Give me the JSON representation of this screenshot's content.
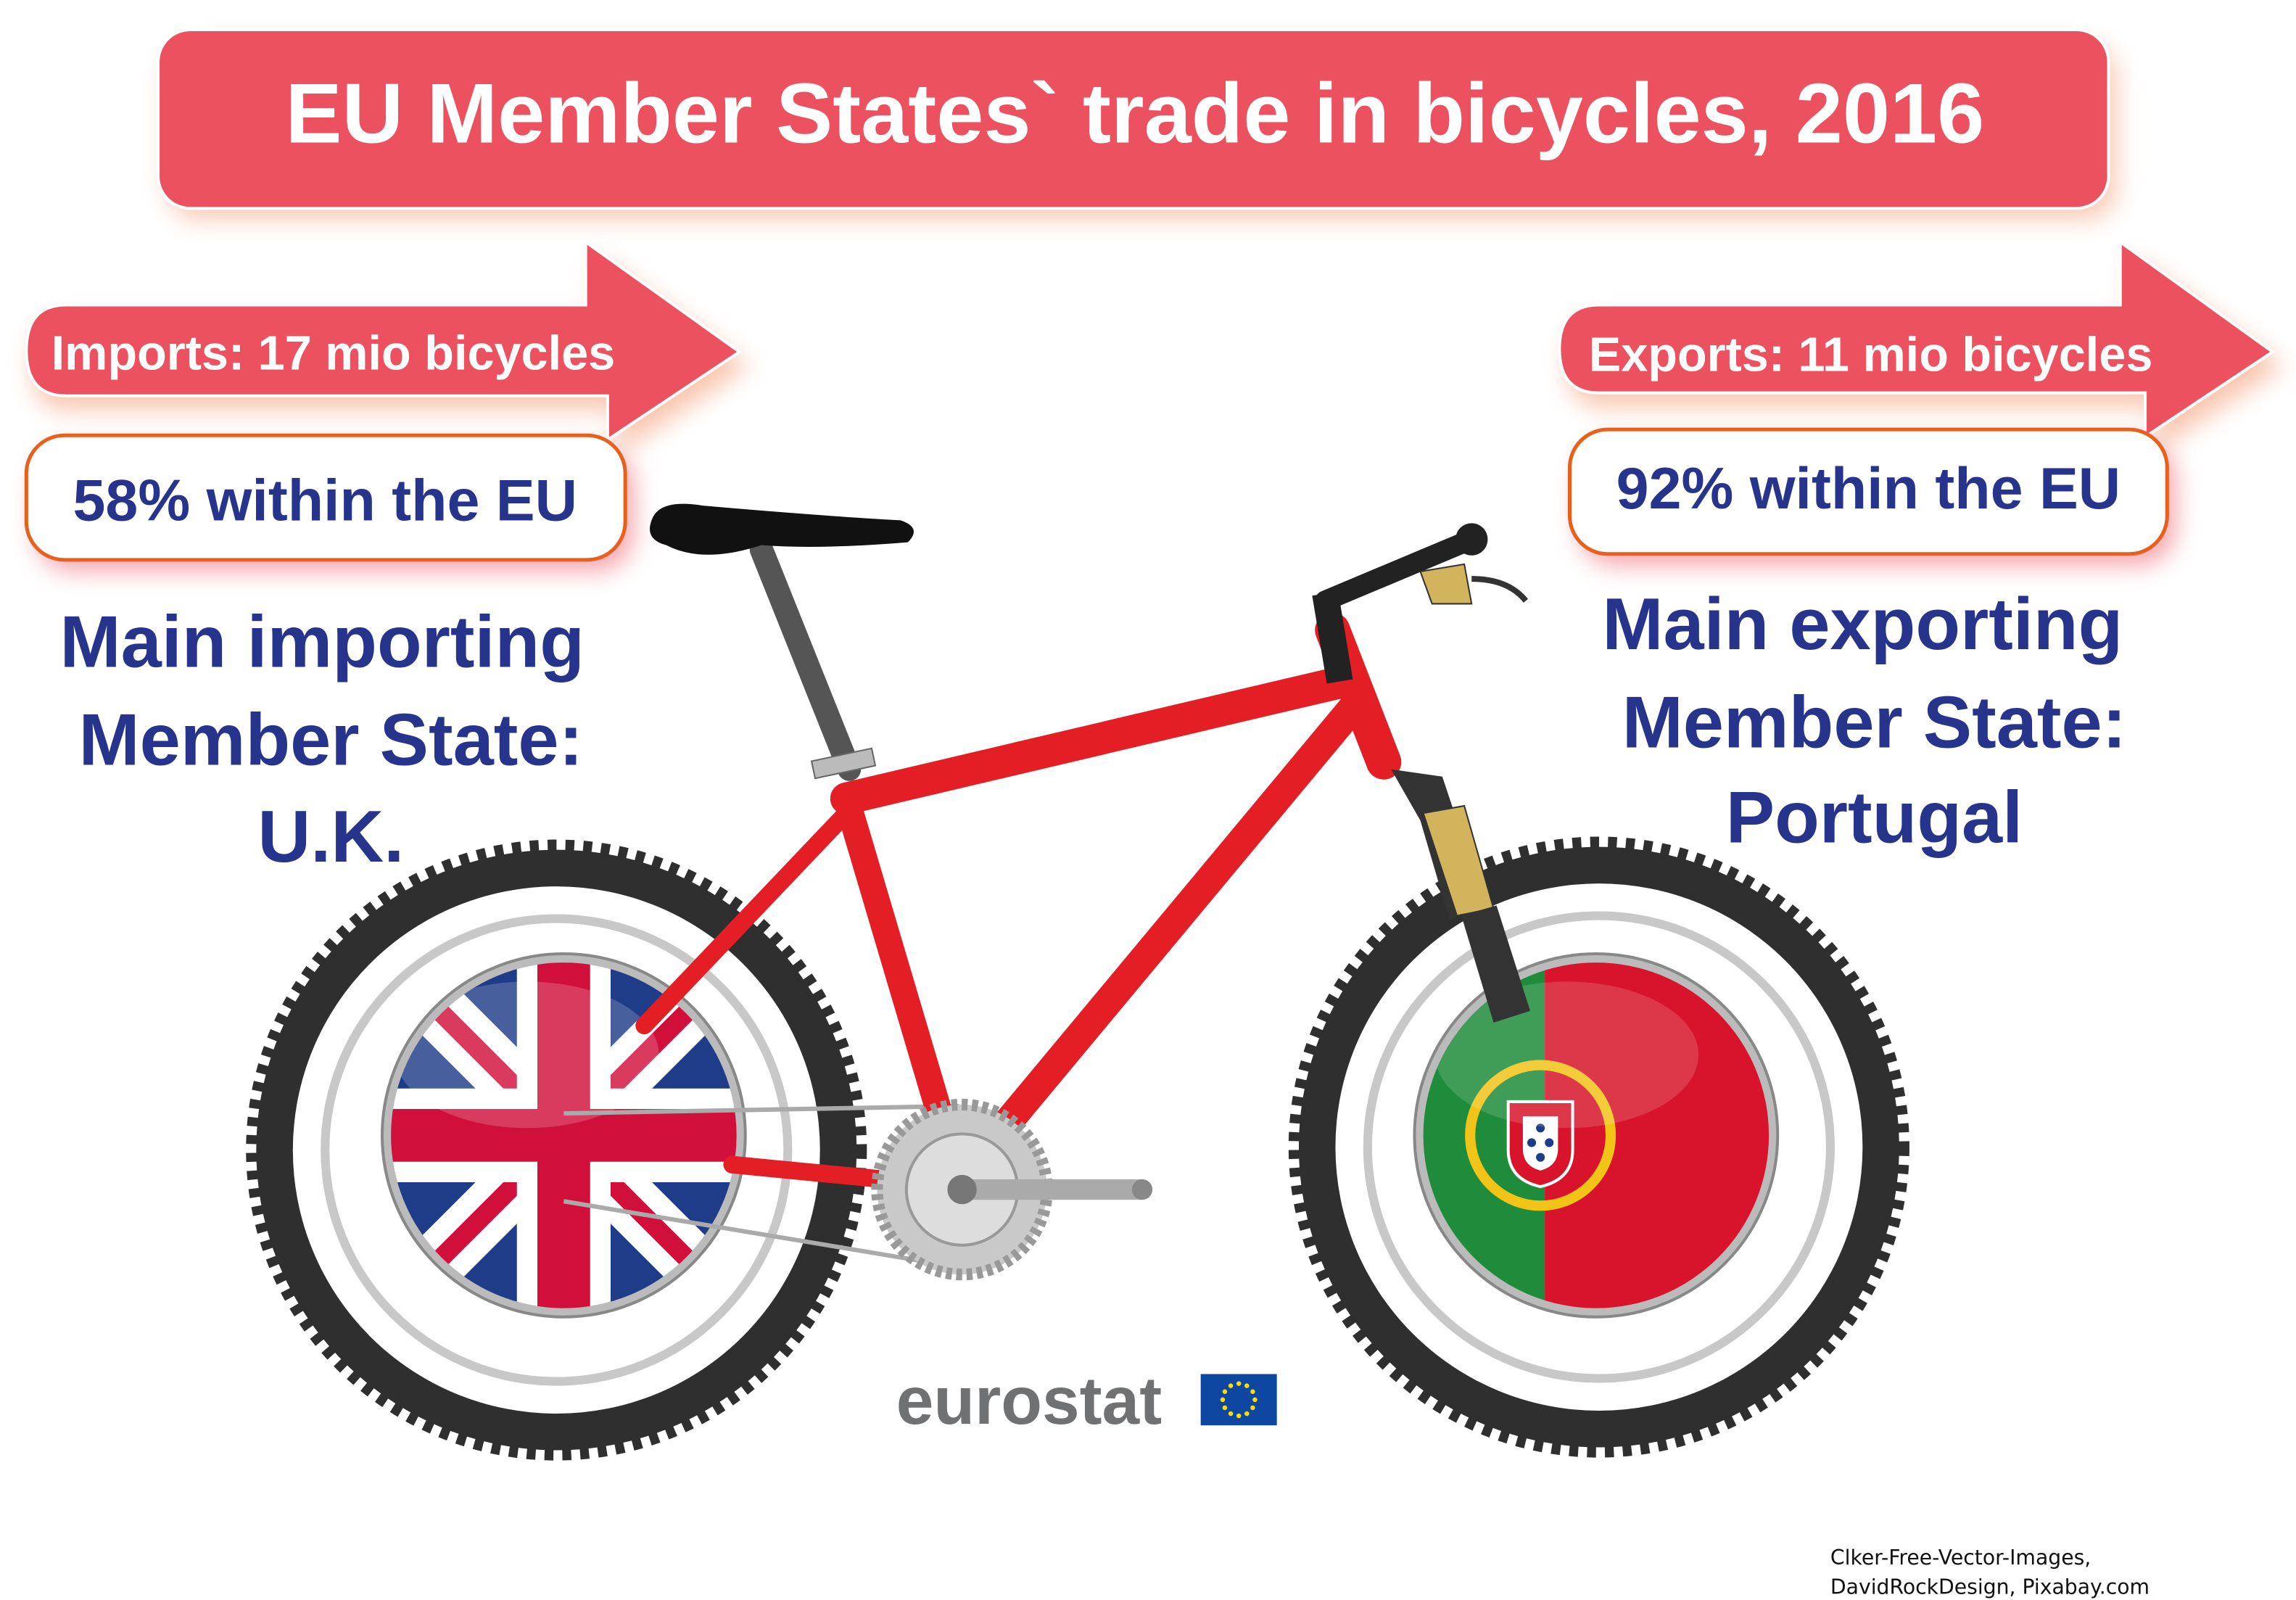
{
  "title": "EU Member States` trade in bicycles, 2016",
  "imports": {
    "label": "Imports: 17 mio bicycles",
    "within_eu": "58% within the EU",
    "main_line1": "Main importing",
    "main_line2": "Member State:",
    "main_country": "U.K.",
    "flag": "united-kingdom-flag"
  },
  "exports": {
    "label": "Exports: 11 mio bicycles",
    "within_eu": "92% within the EU",
    "main_line1": "Main exporting",
    "main_line2": "Member State:",
    "main_country": "Portugal",
    "flag": "portugal-flag"
  },
  "logo": {
    "text": "eurostat",
    "icon": "eu-flag-icon"
  },
  "credit": {
    "line1": "Clker-Free-Vector-Images,",
    "line2": "DavidRockDesign, Pixabay.com"
  },
  "colors": {
    "banner": "#EB515E",
    "text_blue": "#27348B",
    "box_border": "#E8601C",
    "frame_red": "#E31E24"
  }
}
